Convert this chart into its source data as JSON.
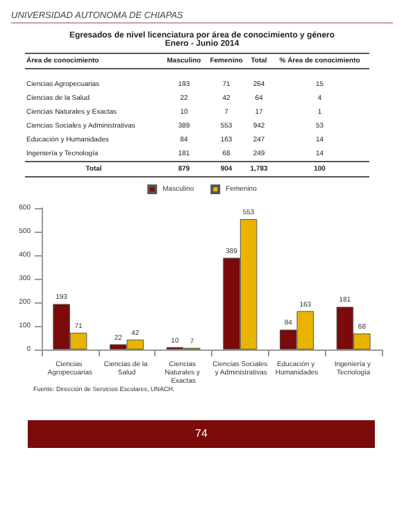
{
  "chart_data": [
    {
      "type": "other",
      "title": "Egresados de nivel licenciatura por área de conocimiento y género",
      "subtitle": "Enero - Junio 2014",
      "annotations": [
        "UNIVERSIDAD AUTONOMA DE CHIAPAS"
      ],
      "categories": [
        "Área de conocimiento",
        "Masculino",
        "Femenino",
        "Total",
        "% Área de conocimiento"
      ],
      "cell_labels": [
        [
          "Ciencias Agropecuarias",
          "193",
          "71",
          "264",
          "15"
        ],
        [
          "Ciencias de la Salud",
          "22",
          "42",
          "64",
          "4"
        ],
        [
          "Ciencias Naturales y Exactas",
          "10",
          "7",
          "17",
          "1"
        ],
        [
          "Ciencias Sociales y Administrativas",
          "389",
          "553",
          "942",
          "53"
        ],
        [
          "Educación y Humanidades",
          "84",
          "163",
          "247",
          "14"
        ],
        [
          "Ingeniería y Tecnología",
          "181",
          "68",
          "249",
          "14"
        ],
        [
          "Total",
          "879",
          "904",
          "1,783",
          "100"
        ]
      ]
    },
    {
      "type": "bar",
      "categories": [
        "Ciencias Agropecuarias",
        "Ciencias de la Salud",
        "Ciencias Naturales y Exactas",
        "Ciencias Sociales y Administrativas",
        "Educación y Humanidades",
        "Ingeniería y Tecnología"
      ],
      "series": [
        {
          "name": "Masculino",
          "color": "#7b0a0a",
          "values": [
            193,
            22,
            10,
            389,
            84,
            181
          ]
        },
        {
          "name": "Femenino",
          "color": "#e8b400",
          "values": [
            71,
            42,
            7,
            553,
            163,
            68
          ]
        }
      ],
      "ylim": [
        0,
        600
      ],
      "yticks": [
        0,
        100,
        200,
        300,
        400,
        500,
        600
      ],
      "data_labels": true,
      "legend": "top",
      "annotations": [
        "Fuente: Dirección de Servicios Escolares, UNACH.",
        "74"
      ]
    }
  ]
}
